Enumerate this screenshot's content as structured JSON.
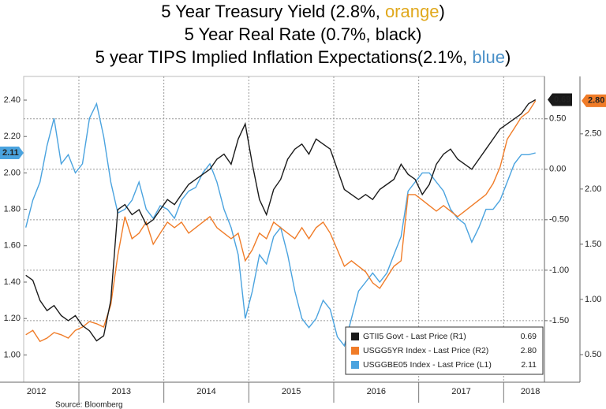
{
  "chart_data": {
    "type": "line",
    "title": [
      {
        "parts": [
          "5 Year Treasury Yield (2.8%, ",
          "orange",
          ")"
        ],
        "colors": [
          "#000000",
          "#e0a81c",
          "#000000"
        ]
      },
      {
        "parts": [
          "5 Year Real Rate (0.7%, black)"
        ],
        "colors": [
          "#000000"
        ]
      },
      {
        "parts": [
          "5 year TIPS Implied Inflation Expectations(2.1%, ",
          "blue",
          ")"
        ],
        "colors": [
          "#000000",
          "#4a90c8",
          "#000000"
        ]
      }
    ],
    "source": "Source: Bloomberg",
    "x": [
      2012.375,
      2012.458,
      2012.542,
      2012.625,
      2012.708,
      2012.792,
      2012.875,
      2012.958,
      2013.042,
      2013.125,
      2013.208,
      2013.292,
      2013.375,
      2013.458,
      2013.542,
      2013.625,
      2013.708,
      2013.792,
      2013.875,
      2013.958,
      2014.042,
      2014.125,
      2014.208,
      2014.292,
      2014.375,
      2014.458,
      2014.542,
      2014.625,
      2014.708,
      2014.792,
      2014.875,
      2014.958,
      2015.042,
      2015.125,
      2015.208,
      2015.292,
      2015.375,
      2015.458,
      2015.542,
      2015.625,
      2015.708,
      2015.792,
      2015.875,
      2015.958,
      2016.042,
      2016.125,
      2016.208,
      2016.292,
      2016.375,
      2016.458,
      2016.542,
      2016.625,
      2016.708,
      2016.792,
      2016.875,
      2016.958,
      2017.042,
      2017.125,
      2017.208,
      2017.292,
      2017.375,
      2017.458,
      2017.542,
      2017.625,
      2017.708,
      2017.792,
      2017.875,
      2017.958,
      2018.042,
      2018.125,
      2018.208,
      2018.292,
      2018.375
    ],
    "xlim": [
      2012.35,
      2018.48
    ],
    "xticks": [
      {
        "value": 2012.5,
        "label": "2012"
      },
      {
        "value": 2013.5,
        "label": "2013"
      },
      {
        "value": 2014.5,
        "label": "2014"
      },
      {
        "value": 2015.5,
        "label": "2015"
      },
      {
        "value": 2016.5,
        "label": "2016"
      },
      {
        "value": 2017.5,
        "label": "2017"
      },
      {
        "value": 2018.5,
        "label": "2018"
      }
    ],
    "ylim": [
      0.85,
      2.53
    ],
    "yticks": [
      {
        "value": 1.0,
        "label": "1.00"
      },
      {
        "value": 1.2,
        "label": "1.20"
      },
      {
        "value": 1.4,
        "label": "1.40"
      },
      {
        "value": 1.6,
        "label": "1.60"
      },
      {
        "value": 1.8,
        "label": "1.80"
      },
      {
        "value": 2.0,
        "label": "2.00"
      },
      {
        "value": 2.2,
        "label": "2.20"
      },
      {
        "value": 2.4,
        "label": "2.40"
      }
    ],
    "y2lim": [
      -2.11,
      0.92
    ],
    "y2ticks": [
      {
        "value": -1.5,
        "label": "-1.50"
      },
      {
        "value": -1.0,
        "label": "-1.00"
      },
      {
        "value": -0.5,
        "label": "-0.50"
      },
      {
        "value": 0,
        "label": "0.00"
      },
      {
        "value": 0.5,
        "label": "0.50"
      }
    ],
    "y3lim": [
      0.25,
      3.02
    ],
    "y3ticks": [
      {
        "value": 0.5,
        "label": "0.50"
      },
      {
        "value": 1.0,
        "label": "1.00"
      },
      {
        "value": 1.5,
        "label": "1.50"
      },
      {
        "value": 2.0,
        "label": "2.00"
      },
      {
        "value": 2.5,
        "label": "2.50"
      }
    ],
    "grid": true,
    "legend": "lower right",
    "series": [
      {
        "name": "GTII5 Govt - Last Price (R1)",
        "last_label": "0.69",
        "axis": "y2",
        "color": "#1a1a1a",
        "values": [
          -1.05,
          -1.1,
          -1.3,
          -1.4,
          -1.35,
          -1.45,
          -1.5,
          -1.45,
          -1.55,
          -1.6,
          -1.7,
          -1.65,
          -1.3,
          -0.4,
          -0.35,
          -0.45,
          -0.4,
          -0.55,
          -0.5,
          -0.4,
          -0.3,
          -0.35,
          -0.25,
          -0.15,
          -0.1,
          -0.05,
          0.0,
          0.1,
          0.15,
          0.05,
          0.3,
          0.45,
          0.05,
          -0.3,
          -0.45,
          -0.2,
          -0.1,
          0.1,
          0.2,
          0.25,
          0.15,
          0.3,
          0.25,
          0.2,
          0.0,
          -0.2,
          -0.25,
          -0.3,
          -0.25,
          -0.3,
          -0.2,
          -0.15,
          -0.1,
          0.05,
          -0.05,
          -0.1,
          -0.25,
          -0.15,
          0.05,
          0.15,
          0.2,
          0.1,
          0.05,
          0.0,
          0.1,
          0.2,
          0.3,
          0.4,
          0.45,
          0.5,
          0.55,
          0.65,
          0.69
        ]
      },
      {
        "name": "USGG5YR Index - Last Price (R2)",
        "last_label": "2.80",
        "axis": "y3",
        "color": "#f07c28",
        "values": [
          0.68,
          0.72,
          0.62,
          0.65,
          0.7,
          0.68,
          0.65,
          0.72,
          0.75,
          0.8,
          0.78,
          0.75,
          0.95,
          1.4,
          1.75,
          1.55,
          1.6,
          1.7,
          1.5,
          1.6,
          1.7,
          1.65,
          1.7,
          1.6,
          1.65,
          1.7,
          1.75,
          1.65,
          1.6,
          1.55,
          1.6,
          1.35,
          1.45,
          1.6,
          1.55,
          1.7,
          1.65,
          1.6,
          1.55,
          1.65,
          1.55,
          1.65,
          1.7,
          1.6,
          1.45,
          1.3,
          1.35,
          1.3,
          1.25,
          1.15,
          1.1,
          1.2,
          1.3,
          1.35,
          1.95,
          1.95,
          1.9,
          1.85,
          1.8,
          1.85,
          1.8,
          1.75,
          1.8,
          1.85,
          1.9,
          1.95,
          2.05,
          2.2,
          2.45,
          2.55,
          2.65,
          2.7,
          2.8
        ]
      },
      {
        "name": "USGGBE05 Index - Last Price (L1)",
        "last_label": "2.11",
        "axis": "y",
        "color": "#4aa3df",
        "values": [
          1.7,
          1.85,
          1.95,
          2.15,
          2.3,
          2.05,
          2.1,
          2.0,
          2.05,
          2.3,
          2.38,
          2.2,
          1.95,
          1.78,
          1.8,
          1.85,
          1.95,
          1.8,
          1.75,
          1.82,
          1.8,
          1.75,
          1.85,
          1.9,
          1.92,
          2.0,
          2.05,
          1.95,
          1.8,
          1.7,
          1.55,
          1.2,
          1.35,
          1.55,
          1.5,
          1.65,
          1.7,
          1.55,
          1.35,
          1.2,
          1.15,
          1.2,
          1.3,
          1.25,
          1.1,
          1.05,
          1.2,
          1.35,
          1.4,
          1.45,
          1.4,
          1.45,
          1.55,
          1.65,
          1.9,
          1.95,
          2.0,
          2.0,
          1.95,
          1.9,
          1.8,
          1.75,
          1.72,
          1.62,
          1.7,
          1.8,
          1.8,
          1.85,
          1.95,
          2.05,
          2.1,
          2.1,
          2.11
        ]
      }
    ]
  }
}
